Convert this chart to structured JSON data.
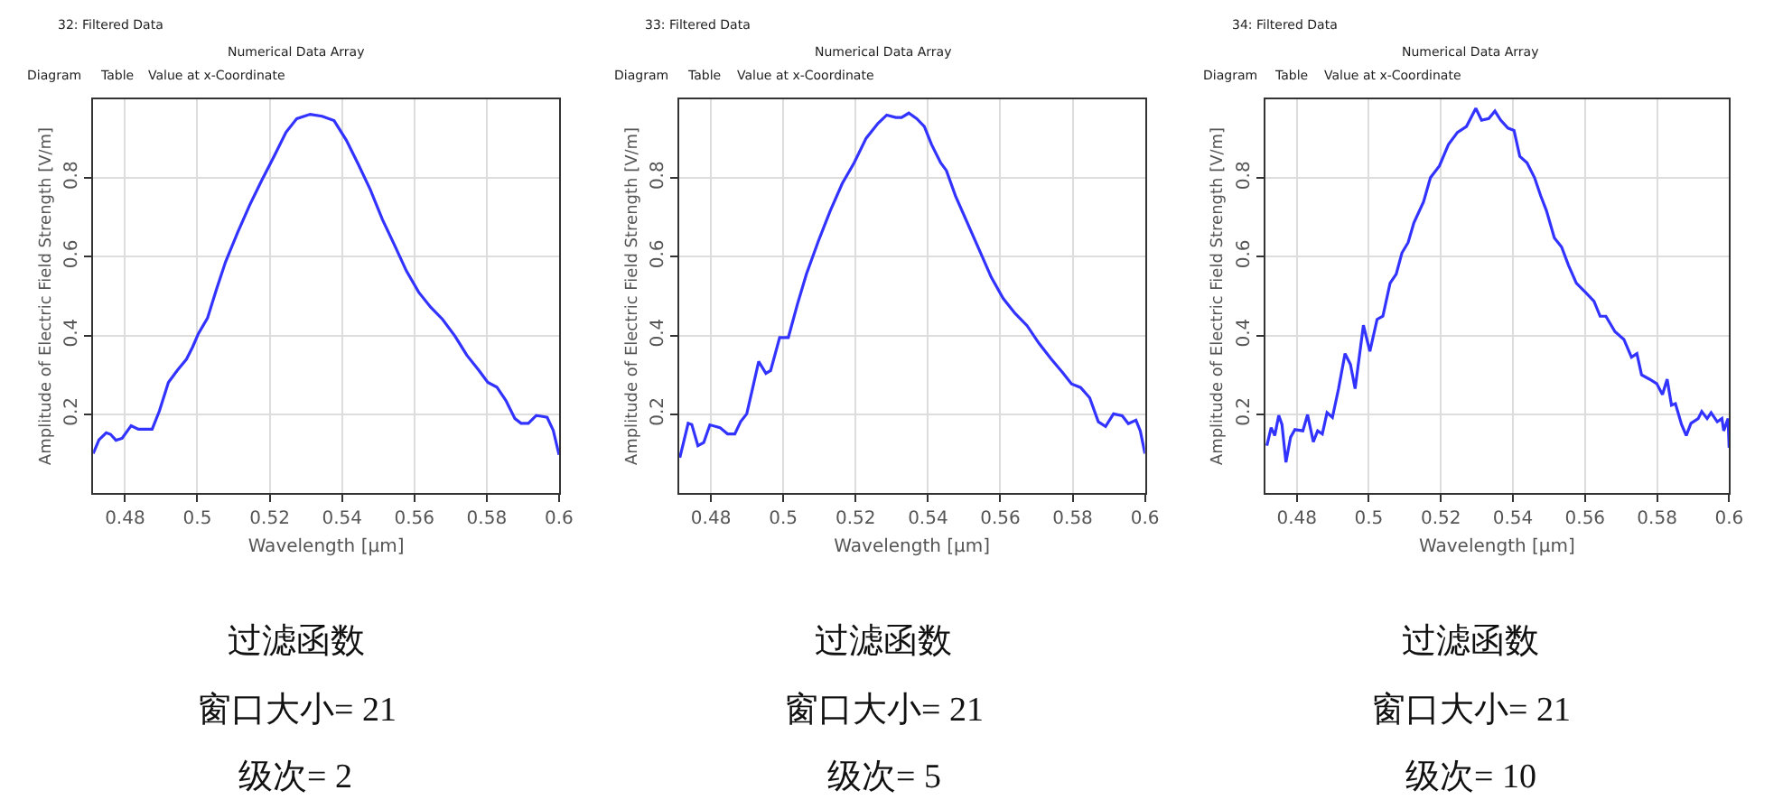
{
  "chart_data": [
    {
      "type": "line",
      "title": "32: Filtered Data",
      "subtitle": "Numerical Data Array",
      "annotations": [
        "Diagram",
        "Table",
        "Value at x-Coordinate",
        "过滤函数",
        "窗口大小= 21",
        "级次= 2"
      ],
      "xlabel": "Wavelength [µm]",
      "ylabel": "Amplitude of Electric Field Strength [V/m]",
      "xlim": [
        0.4712,
        0.6
      ],
      "ylim": [
        0,
        1
      ],
      "xticks": [
        0.48,
        0.5,
        0.52,
        0.54,
        0.56,
        0.58,
        0.6
      ],
      "yticks": [
        0.2,
        0.4,
        0.6,
        0.8
      ],
      "grid": true,
      "x": [
        0.4712,
        0.4728,
        0.4748,
        0.476,
        0.4775,
        0.4792,
        0.4817,
        0.4837,
        0.4875,
        0.4895,
        0.492,
        0.4945,
        0.497,
        0.4987,
        0.5003,
        0.5028,
        0.5053,
        0.5078,
        0.5112,
        0.5145,
        0.5178,
        0.5212,
        0.5245,
        0.5275,
        0.5312,
        0.5345,
        0.5378,
        0.5412,
        0.5445,
        0.5478,
        0.5512,
        0.5545,
        0.5578,
        0.5612,
        0.5645,
        0.5678,
        0.5712,
        0.5745,
        0.5778,
        0.5803,
        0.5828,
        0.5853,
        0.5878,
        0.5895,
        0.5915,
        0.5937,
        0.5951,
        0.5967,
        0.5984,
        0.6
      ],
      "series": [
        {
          "color": "#3333ff",
          "values": [
            0.1,
            0.135,
            0.153,
            0.149,
            0.134,
            0.139,
            0.171,
            0.162,
            0.162,
            0.208,
            0.281,
            0.312,
            0.34,
            0.371,
            0.405,
            0.444,
            0.518,
            0.587,
            0.663,
            0.732,
            0.794,
            0.855,
            0.916,
            0.951,
            0.962,
            0.957,
            0.946,
            0.896,
            0.835,
            0.771,
            0.694,
            0.63,
            0.564,
            0.51,
            0.472,
            0.441,
            0.399,
            0.35,
            0.312,
            0.281,
            0.269,
            0.235,
            0.189,
            0.177,
            0.177,
            0.197,
            0.195,
            0.192,
            0.159,
            0.097
          ]
        }
      ]
    },
    {
      "type": "line",
      "title": "33: Filtered Data",
      "subtitle": "Numerical Data Array",
      "annotations": [
        "Diagram",
        "Table",
        "Value at x-Coordinate",
        "过滤函数",
        "窗口大小= 21",
        "级次= 5"
      ],
      "xlabel": "Wavelength [µm]",
      "ylabel": "Amplitude of Electric Field Strength [V/m]",
      "xlim": [
        0.4712,
        0.6
      ],
      "ylim": [
        0,
        1
      ],
      "xticks": [
        0.48,
        0.5,
        0.52,
        0.54,
        0.56,
        0.58,
        0.6
      ],
      "yticks": [
        0.2,
        0.4,
        0.6,
        0.8
      ],
      "grid": true,
      "x": [
        0.4714,
        0.4726,
        0.4737,
        0.4747,
        0.4764,
        0.478,
        0.4797,
        0.4825,
        0.4846,
        0.4866,
        0.4882,
        0.4899,
        0.4915,
        0.4932,
        0.4952,
        0.4965,
        0.499,
        0.5014,
        0.5039,
        0.5064,
        0.5097,
        0.513,
        0.5163,
        0.5196,
        0.5229,
        0.5262,
        0.5286,
        0.5311,
        0.5327,
        0.5347,
        0.5369,
        0.539,
        0.541,
        0.5435,
        0.5451,
        0.5476,
        0.5509,
        0.5542,
        0.5575,
        0.5608,
        0.5641,
        0.5674,
        0.5707,
        0.574,
        0.5772,
        0.5797,
        0.5822,
        0.5847,
        0.5871,
        0.5891,
        0.5913,
        0.5937,
        0.5954,
        0.5975,
        0.5987,
        0.6
      ],
      "series": [
        {
          "color": "#3333ff",
          "values": [
            0.09,
            0.135,
            0.177,
            0.174,
            0.12,
            0.128,
            0.173,
            0.166,
            0.15,
            0.15,
            0.181,
            0.201,
            0.265,
            0.334,
            0.304,
            0.311,
            0.395,
            0.395,
            0.479,
            0.556,
            0.64,
            0.717,
            0.786,
            0.839,
            0.901,
            0.939,
            0.96,
            0.954,
            0.954,
            0.965,
            0.951,
            0.931,
            0.885,
            0.839,
            0.819,
            0.755,
            0.686,
            0.617,
            0.548,
            0.494,
            0.456,
            0.425,
            0.38,
            0.341,
            0.306,
            0.277,
            0.268,
            0.242,
            0.181,
            0.169,
            0.201,
            0.196,
            0.176,
            0.185,
            0.158,
            0.1
          ]
        }
      ]
    },
    {
      "type": "line",
      "title": "34: Filtered Data",
      "subtitle": "Numerical Data Array",
      "annotations": [
        "Diagram",
        "Table",
        "Value at x-Coordinate",
        "过滤函数",
        "窗口大小= 21",
        "级次= 10"
      ],
      "xlabel": "Wavelength [µm]",
      "ylabel": "Amplitude of Electric Field Strength [V/m]",
      "xlim": [
        0.4712,
        0.6
      ],
      "ylim": [
        0,
        1
      ],
      "xticks": [
        0.48,
        0.5,
        0.52,
        0.54,
        0.56,
        0.58,
        0.6
      ],
      "yticks": [
        0.2,
        0.4,
        0.6,
        0.8
      ],
      "grid": true,
      "x": [
        0.4717,
        0.4729,
        0.4739,
        0.475,
        0.4759,
        0.477,
        0.4783,
        0.4795,
        0.4817,
        0.483,
        0.4846,
        0.4858,
        0.4871,
        0.4884,
        0.4899,
        0.4916,
        0.4934,
        0.4949,
        0.4962,
        0.4985,
        0.5003,
        0.5023,
        0.5039,
        0.5059,
        0.5076,
        0.5092,
        0.5109,
        0.5125,
        0.5152,
        0.5171,
        0.5196,
        0.5221,
        0.5246,
        0.5271,
        0.5284,
        0.5297,
        0.5313,
        0.5333,
        0.535,
        0.5366,
        0.5386,
        0.5403,
        0.5419,
        0.5439,
        0.546,
        0.5477,
        0.5493,
        0.5515,
        0.5535,
        0.5554,
        0.5576,
        0.5601,
        0.5625,
        0.5642,
        0.5658,
        0.5683,
        0.5708,
        0.5729,
        0.5744,
        0.5757,
        0.5779,
        0.5799,
        0.5815,
        0.5828,
        0.584,
        0.5851,
        0.5868,
        0.5881,
        0.5894,
        0.5914,
        0.5924,
        0.5939,
        0.595,
        0.5967,
        0.598,
        0.5985,
        0.5997,
        0.6
      ],
      "series": [
        {
          "color": "#3333ff",
          "values": [
            0.12,
            0.166,
            0.146,
            0.197,
            0.174,
            0.078,
            0.142,
            0.161,
            0.158,
            0.199,
            0.13,
            0.158,
            0.15,
            0.204,
            0.192,
            0.265,
            0.354,
            0.327,
            0.265,
            0.426,
            0.36,
            0.441,
            0.449,
            0.533,
            0.556,
            0.61,
            0.636,
            0.686,
            0.74,
            0.801,
            0.831,
            0.885,
            0.916,
            0.931,
            0.954,
            0.977,
            0.947,
            0.951,
            0.97,
            0.947,
            0.927,
            0.921,
            0.855,
            0.839,
            0.801,
            0.755,
            0.717,
            0.648,
            0.625,
            0.579,
            0.533,
            0.51,
            0.487,
            0.449,
            0.449,
            0.41,
            0.39,
            0.345,
            0.354,
            0.3,
            0.289,
            0.278,
            0.25,
            0.289,
            0.223,
            0.227,
            0.174,
            0.146,
            0.177,
            0.189,
            0.207,
            0.189,
            0.204,
            0.181,
            0.189,
            0.158,
            0.189,
            0.115
          ]
        }
      ]
    }
  ]
}
